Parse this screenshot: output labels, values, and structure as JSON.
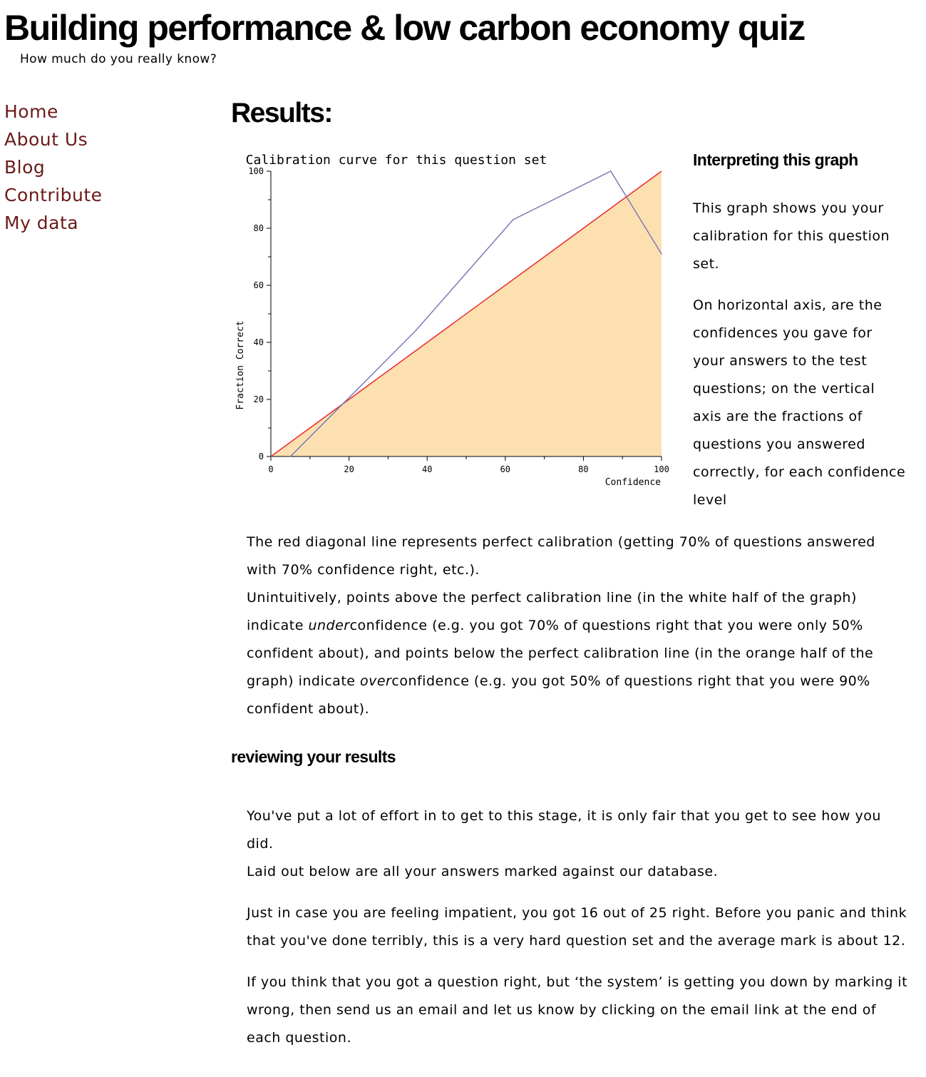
{
  "site": {
    "title": "Building performance & low carbon economy quiz",
    "tagline": "How much do you really know?"
  },
  "nav": {
    "items": [
      {
        "label": "Home"
      },
      {
        "label": "About Us"
      },
      {
        "label": "Blog"
      },
      {
        "label": "Contribute"
      },
      {
        "label": "My data"
      }
    ],
    "link_color": "#6b1a1a"
  },
  "results": {
    "heading": "Results:"
  },
  "chart_data": {
    "type": "line",
    "title": "Calibration curve for this question set",
    "xlabel": "Confidence",
    "ylabel": "Fraction Correct",
    "xlim": [
      0,
      100
    ],
    "ylim": [
      0,
      100
    ],
    "x_ticks": [
      0,
      20,
      40,
      60,
      80,
      100
    ],
    "y_ticks": [
      0,
      20,
      40,
      60,
      80,
      100
    ],
    "grid": false,
    "series": [
      {
        "x": [
          5,
          37,
          62,
          87,
          100
        ],
        "y": [
          0,
          44,
          83,
          100,
          71
        ],
        "color": "#7a7ab8"
      }
    ],
    "reference_line": {
      "x": [
        0,
        100
      ],
      "y": [
        0,
        100
      ],
      "color": "#e8282d"
    },
    "fill_below_reference": "#fde0b0"
  },
  "interpret": {
    "heading": "Interpreting this graph",
    "p1": "This graph shows you your calibration for this question set.",
    "p2": "On horizontal axis, are the confidences you gave for your answers to the test questions; on the vertical axis are the fractions of questions you answered correctly, for each confidence level"
  },
  "explain": {
    "line1": "The red diagonal line represents perfect calibration (getting 70% of questions answered with 70% confidence right, etc.).",
    "line2_a": "Unintuitively, points above the perfect calibration line (in the white half of the graph) indicate ",
    "line2_under": "under",
    "line2_b": "confidence (e.g. you got 70% of questions right that you were only 50% confident about), and points below the perfect calibration line (in the orange half of the graph) indicate ",
    "line2_over": "over",
    "line2_c": "confidence (e.g. you got 50% of questions right that you were 90% confident about)."
  },
  "review": {
    "heading": "reviewing your results",
    "p1a": "You've put a lot of effort in to get to this stage, it is only fair that you get to see how you did.",
    "p1b": "Laid out below are all your answers marked against our database.",
    "p2": "Just in case you are feeling impatient, you got 16 out of 25 right. Before you panic and think that you've done terribly, this is a very hard question set and the average mark is about 12.",
    "p3": "If you think that you got a question right, but ‘the system’ is getting you down by marking it wrong, then send us an email and let us know by clicking on the email link at the end of each question."
  }
}
